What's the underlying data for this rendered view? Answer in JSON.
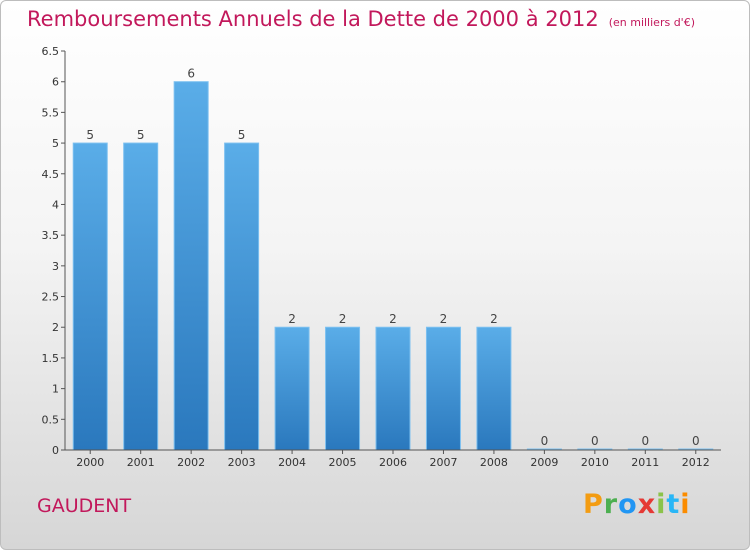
{
  "title": "Remboursements Annuels de la Dette de 2000 à 2012",
  "subtitle": "(en milliers d'€)",
  "commune": "GAUDENT",
  "brand": {
    "letters": [
      "P",
      "r",
      "o",
      "x",
      "i",
      "t",
      "i"
    ],
    "colors": [
      "#f39c12",
      "#4caf50",
      "#2196f3",
      "#e53935",
      "#8bc34a",
      "#29b6f6",
      "#fb8c00"
    ]
  },
  "chart_data": {
    "type": "bar",
    "title": "Remboursements Annuels de la Dette de 2000 à 2012",
    "subtitle": "(en milliers d'€)",
    "categories": [
      "2000",
      "2001",
      "2002",
      "2003",
      "2004",
      "2005",
      "2006",
      "2007",
      "2008",
      "2009",
      "2010",
      "2011",
      "2012"
    ],
    "values": [
      5,
      5,
      6,
      5,
      2,
      2,
      2,
      2,
      2,
      0,
      0,
      0,
      0
    ],
    "data_labels": [
      "5",
      "5",
      "6",
      "5",
      "2",
      "2",
      "2",
      "2",
      "2",
      "0",
      "0",
      "0",
      "0"
    ],
    "yticks": [
      "0",
      "0.5",
      "1",
      "1.5",
      "2",
      "2.5",
      "3",
      "3.5",
      "4",
      "4.5",
      "5",
      "5.5",
      "6",
      "6.5"
    ],
    "ylim": [
      0,
      6.5
    ],
    "grid": false,
    "bar_color": "#3a8fd8"
  }
}
